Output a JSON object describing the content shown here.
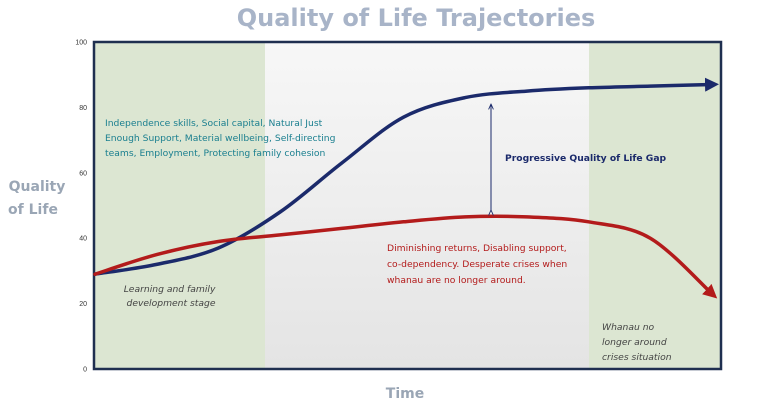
{
  "chart_data": {
    "type": "line",
    "title": "Quality of Life Trajectories",
    "xlabel": "Time",
    "ylabel": "Quality of Life",
    "ylim": [
      0,
      100
    ],
    "yticks": [
      "0",
      "20",
      "40",
      "60",
      "80",
      "100"
    ],
    "grid": false,
    "x": [
      0,
      0.1,
      0.2,
      0.3,
      0.4,
      0.5,
      0.6,
      0.7,
      0.8,
      0.9,
      1.0
    ],
    "series": [
      {
        "values": [
          29,
          32,
          37,
          48,
          63,
          77,
          83,
          85,
          86,
          86.5,
          87
        ],
        "color": "#1b2a6b"
      },
      {
        "values": [
          29,
          35,
          39,
          41,
          43,
          45,
          46.5,
          46.5,
          45,
          40,
          23
        ],
        "color": "#b31b1b"
      }
    ],
    "annotations": {
      "gap_label": "Progressive Quality of Life Gap",
      "blue_text": [
        "Independence skills, Social capital, Natural Just",
        "Enough Support, Material wellbeing, Self-directing",
        "teams, Employment, Protecting family cohesion"
      ],
      "red_text": [
        "Diminishing returns, Disabling support,",
        "co-dependency. Desperate crises when",
        "whanau are no longer around."
      ],
      "left_stage": [
        "Learning and family",
        "development stage"
      ],
      "right_stage": [
        "Whanau no",
        "longer around",
        "crises situation"
      ]
    },
    "colors": {
      "title": "#a8b4c8",
      "axis_title": "#9aa6b5",
      "blue_text": "#1a7f8f",
      "gap_label": "#1b2a6b",
      "red_text": "#b31b1b",
      "stage_text": "#444444",
      "green_band": "#dce6d2",
      "middle_band": "#eeeeee",
      "frame": "#1f2f50"
    }
  }
}
